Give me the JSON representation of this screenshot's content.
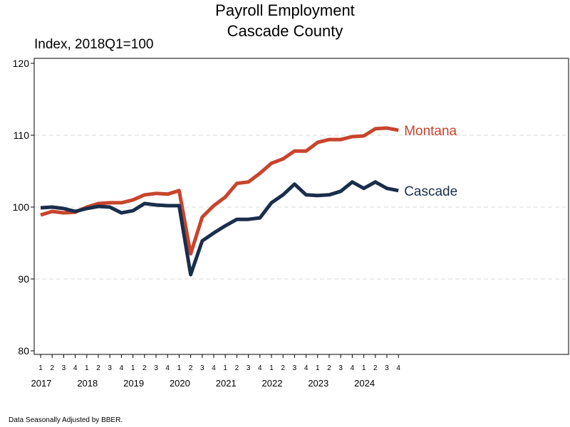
{
  "title": [
    "Payroll Employment",
    "Cascade County"
  ],
  "subtitle": "Index, 2018Q1=100",
  "footnote": "Data Seasonally Adjusted by BBER.",
  "chart_data": {
    "type": "line",
    "title": "Payroll Employment Cascade County",
    "ylabel": "Index, 2018Q1=100",
    "ylim": [
      80,
      120
    ],
    "yticks": [
      80,
      90,
      100,
      110,
      120
    ],
    "grid": "horizontal-dashed",
    "years": [
      "2017",
      "2018",
      "2019",
      "2020",
      "2021",
      "2022",
      "2023",
      "2024"
    ],
    "quarters": [
      "1",
      "2",
      "3",
      "4"
    ],
    "x": [
      "2017Q1",
      "2017Q2",
      "2017Q3",
      "2017Q4",
      "2018Q1",
      "2018Q2",
      "2018Q3",
      "2018Q4",
      "2019Q1",
      "2019Q2",
      "2019Q3",
      "2019Q4",
      "2020Q1",
      "2020Q2",
      "2020Q3",
      "2020Q4",
      "2021Q1",
      "2021Q2",
      "2021Q3",
      "2021Q4",
      "2022Q1",
      "2022Q2",
      "2022Q3",
      "2022Q4",
      "2023Q1",
      "2023Q2",
      "2023Q3",
      "2023Q4",
      "2024Q1",
      "2024Q2",
      "2024Q3",
      "2024Q4"
    ],
    "series": [
      {
        "name": "Montana",
        "color": "#c8442c",
        "values": [
          98.9,
          99.4,
          99.2,
          99.3,
          100.0,
          100.5,
          100.6,
          100.6,
          101.0,
          101.7,
          101.9,
          101.8,
          102.3,
          93.5,
          98.6,
          100.2,
          101.4,
          103.3,
          103.5,
          104.7,
          106.1,
          106.7,
          107.8,
          107.8,
          109.0,
          109.4,
          109.4,
          109.8,
          109.9,
          110.9,
          111.0,
          110.7
        ]
      },
      {
        "name": "Cascade",
        "color": "#1a2e4c",
        "values": [
          99.9,
          100.0,
          99.8,
          99.4,
          99.8,
          100.1,
          100.0,
          99.2,
          99.5,
          100.5,
          100.3,
          100.2,
          100.2,
          90.6,
          95.3,
          96.4,
          97.4,
          98.3,
          98.3,
          98.5,
          100.6,
          101.7,
          103.2,
          101.7,
          101.6,
          101.7,
          102.2,
          103.5,
          102.6,
          103.5,
          102.6,
          102.3
        ]
      }
    ]
  }
}
